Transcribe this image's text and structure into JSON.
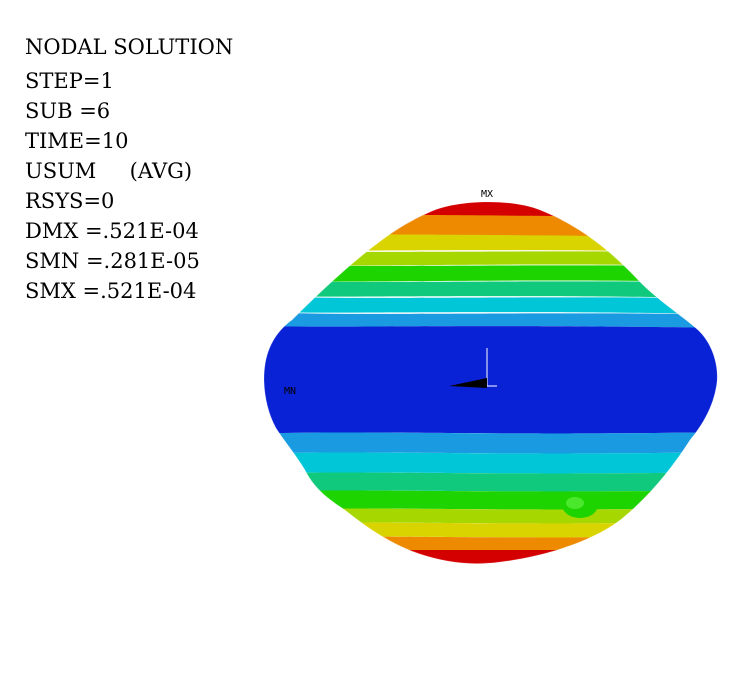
{
  "legend": {
    "title": "NODAL SOLUTION",
    "step": "STEP=1",
    "sub": "SUB =6",
    "time": "TIME=10",
    "usum": "USUM     (AVG)",
    "rsys": "RSYS=0",
    "dmx": "DMX =.521E-04",
    "smn": "SMN =.281E-05",
    "smx": "SMX =.521E-04"
  },
  "markers": {
    "max_label": "MX",
    "min_label": "MN"
  },
  "colors": {
    "max": "#d40000",
    "orange": "#ee8a00",
    "yellow": "#d9d400",
    "yellow_green": "#a6d800",
    "green": "#1ed400",
    "teal_green": "#10c97c",
    "cyan": "#00c6d8",
    "light_blue": "#1a9ae0",
    "min": "#0a22d6"
  }
}
